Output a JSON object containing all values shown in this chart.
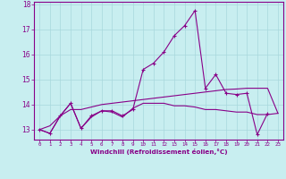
{
  "xlabel": "Windchill (Refroidissement éolien,°C)",
  "x_ticks": [
    0,
    1,
    2,
    3,
    4,
    5,
    6,
    7,
    8,
    9,
    10,
    11,
    12,
    13,
    14,
    15,
    16,
    17,
    18,
    19,
    20,
    21,
    22,
    23
  ],
  "ylim": [
    12.6,
    18.1
  ],
  "yticks": [
    13,
    14,
    15,
    16,
    17,
    18
  ],
  "xlim": [
    -0.5,
    23.5
  ],
  "bg_color": "#c8eef0",
  "line_color": "#880088",
  "series1": [
    13.0,
    12.85,
    13.55,
    14.05,
    13.05,
    13.55,
    13.75,
    13.75,
    13.55,
    13.8,
    15.4,
    15.65,
    16.1,
    16.75,
    17.15,
    17.75,
    14.65,
    15.2,
    14.45,
    14.4,
    14.45,
    12.8,
    13.65,
    null
  ],
  "series2": [
    13.0,
    13.15,
    13.55,
    13.8,
    13.8,
    13.9,
    14.0,
    14.05,
    14.1,
    14.15,
    14.2,
    14.25,
    14.3,
    14.35,
    14.4,
    14.45,
    14.5,
    14.55,
    14.6,
    14.62,
    14.65,
    14.65,
    14.65,
    13.65
  ],
  "series3": [
    13.0,
    12.85,
    13.55,
    14.05,
    13.05,
    13.5,
    13.75,
    13.7,
    13.5,
    13.85,
    14.05,
    14.05,
    14.05,
    13.95,
    13.95,
    13.9,
    13.8,
    13.8,
    13.75,
    13.7,
    13.7,
    13.6,
    13.6,
    13.65
  ]
}
